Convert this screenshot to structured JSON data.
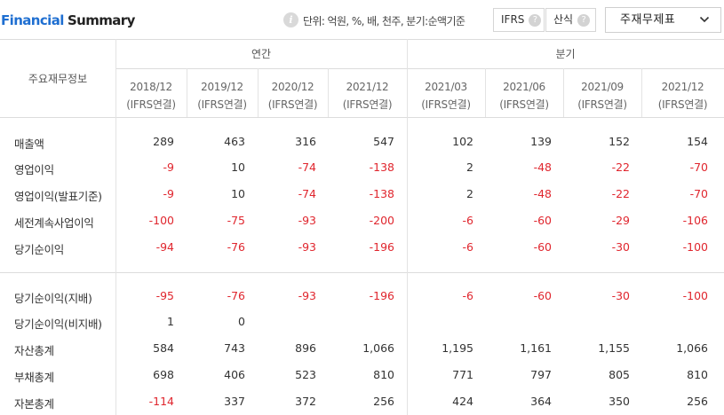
{
  "header": {
    "title_part1": "Financial",
    "title_part2": "Summary",
    "info_icon_glyph": "i",
    "unit_text": "단위: 억원, %, 배, 천주, 분기:순액기준",
    "toggle_ifrs": "IFRS",
    "toggle_sansik": "산식",
    "help_glyph": "?",
    "dropdown_value": "주재무제표"
  },
  "table": {
    "group_annual": "연간",
    "group_quarterly": "분기",
    "main_header": "주요재무정보",
    "columns": [
      {
        "period": "2018/12",
        "basis": "(IFRS연결)"
      },
      {
        "period": "2019/12",
        "basis": "(IFRS연결)"
      },
      {
        "period": "2020/12",
        "basis": "(IFRS연결)"
      },
      {
        "period": "2021/12",
        "basis": "(IFRS연결)"
      },
      {
        "period": "2021/03",
        "basis": "(IFRS연결)"
      },
      {
        "period": "2021/06",
        "basis": "(IFRS연결)"
      },
      {
        "period": "2021/09",
        "basis": "(IFRS연결)"
      },
      {
        "period": "2021/12",
        "basis": "(IFRS연결)"
      }
    ],
    "rows": [
      {
        "label": "매출액",
        "values": [
          "289",
          "463",
          "316",
          "547",
          "102",
          "139",
          "152",
          "154"
        ]
      },
      {
        "label": "영업이익",
        "values": [
          "-9",
          "10",
          "-74",
          "-138",
          "2",
          "-48",
          "-22",
          "-70"
        ]
      },
      {
        "label": "영업이익(발표기준)",
        "values": [
          "-9",
          "10",
          "-74",
          "-138",
          "2",
          "-48",
          "-22",
          "-70"
        ]
      },
      {
        "label": "세전계속사업이익",
        "values": [
          "-100",
          "-75",
          "-93",
          "-200",
          "-6",
          "-60",
          "-29",
          "-106"
        ]
      },
      {
        "label": "당기순이익",
        "values": [
          "-94",
          "-76",
          "-93",
          "-196",
          "-6",
          "-60",
          "-30",
          "-100"
        ]
      },
      {
        "label": "당기순이익(지배)",
        "values": [
          "-95",
          "-76",
          "-93",
          "-196",
          "-6",
          "-60",
          "-30",
          "-100"
        ]
      },
      {
        "label": "당기순이익(비지배)",
        "values": [
          "1",
          "0",
          "",
          "",
          "",
          "",
          "",
          ""
        ]
      },
      {
        "label": "자산총계",
        "values": [
          "584",
          "743",
          "896",
          "1,066",
          "1,195",
          "1,161",
          "1,155",
          "1,066"
        ]
      },
      {
        "label": "부채총계",
        "values": [
          "698",
          "406",
          "523",
          "810",
          "771",
          "797",
          "805",
          "810"
        ]
      },
      {
        "label": "자본총계",
        "values": [
          "-114",
          "337",
          "372",
          "256",
          "424",
          "364",
          "350",
          "256"
        ]
      }
    ]
  },
  "colors": {
    "accent_blue": "#1f6fd1",
    "negative_red": "#e0262e"
  },
  "icons": {
    "info": "info-icon",
    "help": "help-icon",
    "dropdown": "chevron-down-icon"
  }
}
